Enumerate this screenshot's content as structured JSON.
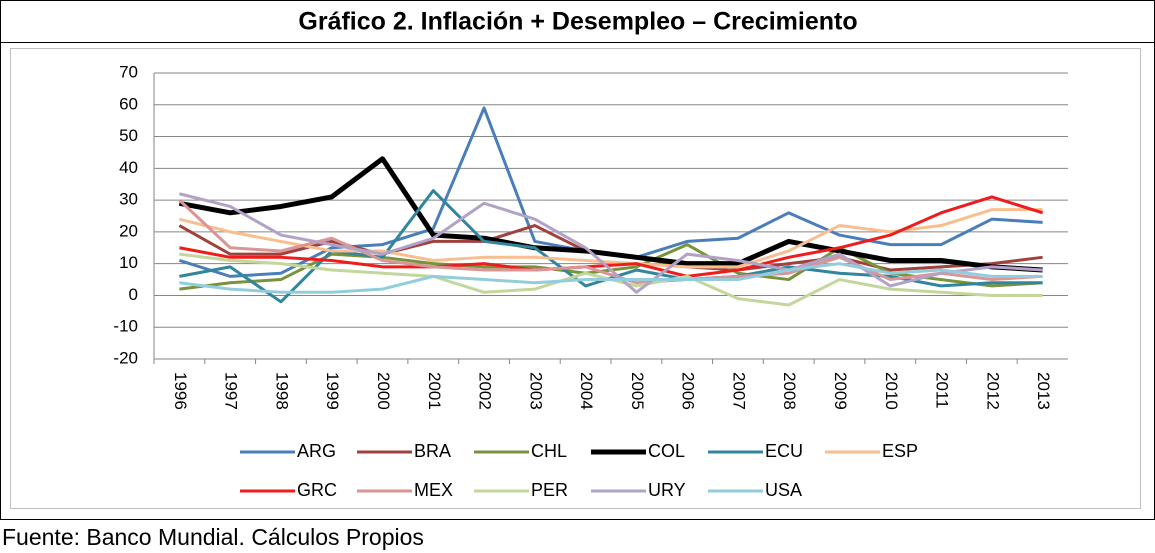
{
  "chart_data": {
    "type": "line",
    "title": "Gráfico 2. Inflación + Desempleo – Crecimiento",
    "source": "Fuente: Banco Mundial. Cálculos Propios",
    "categories": [
      "1996",
      "1997",
      "1998",
      "1999",
      "2000",
      "2001",
      "2002",
      "2003",
      "2004",
      "2005",
      "2006",
      "2007",
      "2008",
      "2009",
      "2010",
      "2011",
      "2012",
      "2013"
    ],
    "ylim": [
      -20,
      70
    ],
    "yticks": [
      -20,
      -10,
      0,
      10,
      20,
      30,
      40,
      50,
      60,
      70
    ],
    "grid": true,
    "legend": "bottom",
    "series": [
      {
        "name": "ARG",
        "color": "#4a7ebb",
        "values": [
          11,
          6,
          7,
          15,
          16,
          21,
          59,
          17,
          14,
          12,
          17,
          18,
          26,
          19,
          16,
          16,
          24,
          23
        ]
      },
      {
        "name": "BRA",
        "color": "#a0413e",
        "values": [
          22,
          13,
          13,
          17,
          13,
          17,
          17,
          22,
          14,
          12,
          9,
          8,
          10,
          12,
          8,
          9,
          10,
          12
        ]
      },
      {
        "name": "CHL",
        "color": "#77933c",
        "values": [
          2,
          4,
          5,
          13,
          12,
          10,
          9,
          9,
          7,
          9,
          16,
          7,
          5,
          15,
          7,
          5,
          3,
          4
        ]
      },
      {
        "name": "COL",
        "color": "#000000",
        "values": [
          29,
          26,
          28,
          31,
          43,
          19,
          18,
          15,
          14,
          12,
          10,
          10,
          17,
          14,
          11,
          11,
          9,
          8
        ]
      },
      {
        "name": "ECU",
        "color": "#31859c",
        "values": [
          6,
          9,
          -2,
          14,
          12,
          33,
          17,
          15,
          3,
          8,
          5,
          6,
          9,
          7,
          6,
          3,
          4,
          4
        ]
      },
      {
        "name": "ESP",
        "color": "#f9be8f",
        "values": [
          24,
          20,
          17,
          14,
          14,
          11,
          12,
          12,
          11,
          10,
          9,
          9,
          14,
          22,
          20,
          22,
          27,
          27
        ]
      },
      {
        "name": "GRC",
        "color": "#ee1c1c",
        "values": [
          15,
          12,
          12,
          11,
          9,
          9,
          10,
          8,
          9,
          10,
          6,
          8,
          12,
          15,
          19,
          26,
          31,
          26
        ]
      },
      {
        "name": "MEX",
        "color": "#d99694",
        "values": [
          30,
          15,
          14,
          18,
          11,
          9,
          8,
          8,
          9,
          4,
          5,
          6,
          7,
          12,
          5,
          7,
          5,
          6
        ]
      },
      {
        "name": "PER",
        "color": "#c3d69b",
        "values": [
          13,
          11,
          10,
          8,
          7,
          6,
          1,
          2,
          7,
          3,
          6,
          -1,
          -3,
          5,
          2,
          1,
          0,
          0
        ]
      },
      {
        "name": "URY",
        "color": "#b3a2c7",
        "values": [
          32,
          28,
          19,
          16,
          13,
          18,
          29,
          24,
          15,
          1,
          13,
          11,
          8,
          13,
          3,
          7,
          9,
          8
        ]
      },
      {
        "name": "USA",
        "color": "#93cddd",
        "values": [
          4,
          2,
          1,
          1,
          2,
          6,
          5,
          4,
          5,
          5,
          5,
          5,
          8,
          10,
          7,
          8,
          6,
          6
        ]
      }
    ]
  }
}
